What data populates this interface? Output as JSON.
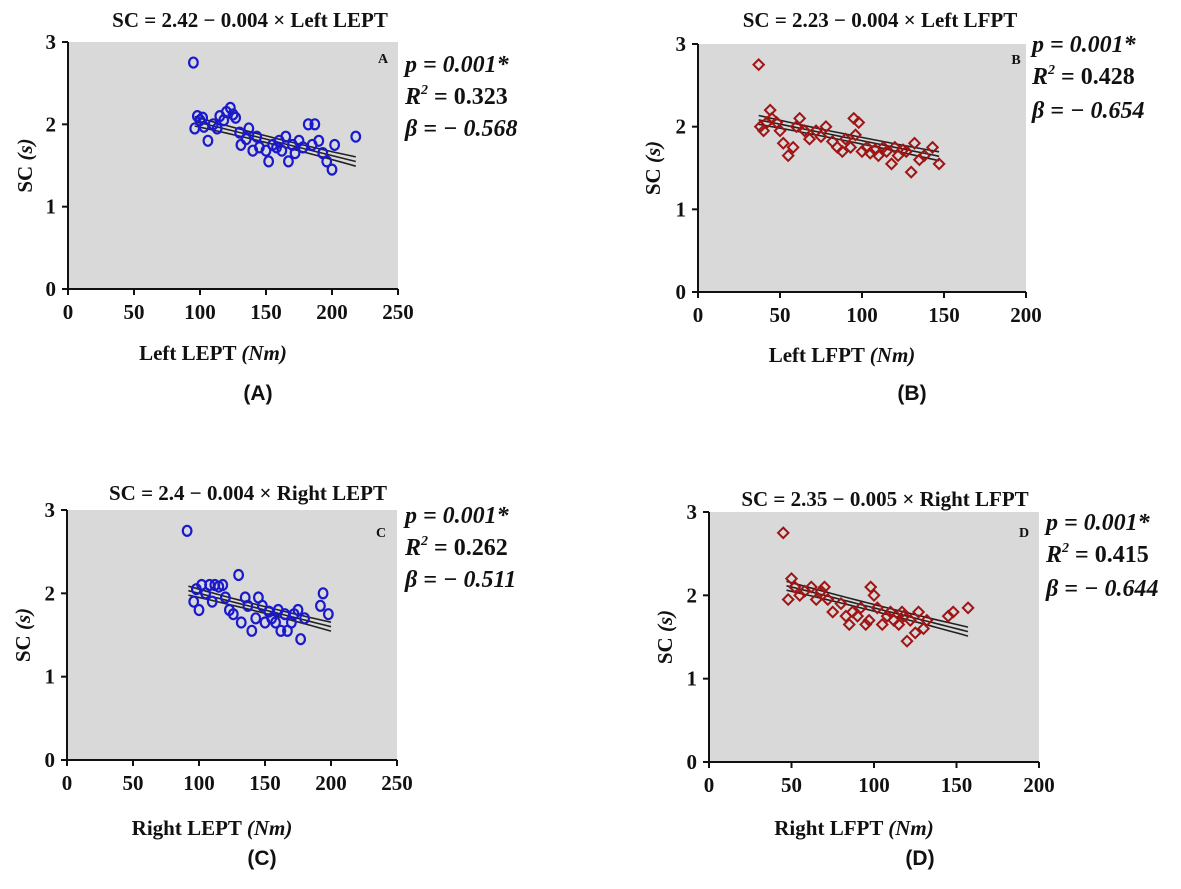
{
  "chart_data": [
    {
      "type": "scatter",
      "title": "SC = 2.42 − 0.004 × Left LEPT",
      "panel_letter": "A",
      "caption": "(A)",
      "xlabel_main": "Left LEPT ",
      "xlabel_unit": "(Nm)",
      "ylabel_main": "SC ",
      "ylabel_unit": "(s)",
      "xlim": [
        0,
        250
      ],
      "ylim": [
        0,
        3
      ],
      "xticks": [
        "0",
        "50",
        "100",
        "150",
        "200",
        "250"
      ],
      "yticks": [
        "0",
        "1",
        "2",
        "3"
      ],
      "marker": "circle",
      "color": "#1a1acc",
      "background": "#d9d9d9",
      "stats": {
        "p": "p = 0.001*",
        "r2_label": "R",
        "r2_value": "2",
        "r2_rest": " = 0.323",
        "beta": "β = − 0.568"
      },
      "fit": {
        "intercept": 2.42,
        "slope": -0.004,
        "x_range": [
          96,
          218
        ]
      },
      "points": [
        [
          95,
          2.75
        ],
        [
          96,
          1.95
        ],
        [
          98,
          2.1
        ],
        [
          100,
          2.05
        ],
        [
          102,
          2.08
        ],
        [
          103,
          1.97
        ],
        [
          106,
          1.8
        ],
        [
          110,
          2.0
        ],
        [
          113,
          1.95
        ],
        [
          115,
          2.1
        ],
        [
          118,
          2.05
        ],
        [
          120,
          2.15
        ],
        [
          123,
          2.2
        ],
        [
          125,
          2.12
        ],
        [
          127,
          2.08
        ],
        [
          130,
          1.9
        ],
        [
          131,
          1.75
        ],
        [
          135,
          1.82
        ],
        [
          137,
          1.95
        ],
        [
          140,
          1.68
        ],
        [
          143,
          1.85
        ],
        [
          145,
          1.72
        ],
        [
          150,
          1.68
        ],
        [
          152,
          1.55
        ],
        [
          155,
          1.75
        ],
        [
          158,
          1.72
        ],
        [
          160,
          1.8
        ],
        [
          162,
          1.68
        ],
        [
          165,
          1.85
        ],
        [
          167,
          1.55
        ],
        [
          170,
          1.75
        ],
        [
          172,
          1.65
        ],
        [
          175,
          1.8
        ],
        [
          178,
          1.72
        ],
        [
          182,
          2.0
        ],
        [
          185,
          1.75
        ],
        [
          187,
          2.0
        ],
        [
          190,
          1.8
        ],
        [
          193,
          1.65
        ],
        [
          196,
          1.55
        ],
        [
          200,
          1.45
        ],
        [
          202,
          1.75
        ],
        [
          218,
          1.85
        ]
      ]
    },
    {
      "type": "scatter",
      "title": "SC = 2.23 − 0.004 × Left LFPT",
      "panel_letter": "B",
      "caption": "(B)",
      "xlabel_main": "Left LFPT ",
      "xlabel_unit": "(Nm)",
      "ylabel_main": "SC ",
      "ylabel_unit": "(s)",
      "xlim": [
        0,
        200
      ],
      "ylim": [
        0,
        3
      ],
      "xticks": [
        "0",
        "50",
        "100",
        "150",
        "200"
      ],
      "yticks": [
        "0",
        "1",
        "2",
        "3"
      ],
      "marker": "diamond",
      "color": "#a01414",
      "background": "#d9d9d9",
      "stats": {
        "p": "p = 0.001*",
        "r2_label": "R",
        "r2_value": "2",
        "r2_rest": " = 0.428",
        "beta": "β = − 0.654"
      },
      "fit": {
        "intercept": 2.23,
        "slope": -0.004,
        "x_range": [
          37,
          147
        ]
      },
      "points": [
        [
          37,
          2.75
        ],
        [
          38,
          2.0
        ],
        [
          40,
          1.95
        ],
        [
          42,
          2.05
        ],
        [
          44,
          2.2
        ],
        [
          45,
          2.1
        ],
        [
          48,
          2.05
        ],
        [
          50,
          1.95
        ],
        [
          52,
          1.8
        ],
        [
          55,
          1.65
        ],
        [
          58,
          1.75
        ],
        [
          60,
          2.0
        ],
        [
          62,
          2.1
        ],
        [
          65,
          1.95
        ],
        [
          68,
          1.85
        ],
        [
          72,
          1.95
        ],
        [
          75,
          1.88
        ],
        [
          78,
          2.0
        ],
        [
          82,
          1.82
        ],
        [
          85,
          1.75
        ],
        [
          88,
          1.7
        ],
        [
          90,
          1.85
        ],
        [
          93,
          1.75
        ],
        [
          95,
          2.1
        ],
        [
          96,
          1.9
        ],
        [
          98,
          2.05
        ],
        [
          100,
          1.7
        ],
        [
          103,
          1.75
        ],
        [
          105,
          1.68
        ],
        [
          108,
          1.72
        ],
        [
          110,
          1.65
        ],
        [
          113,
          1.75
        ],
        [
          115,
          1.7
        ],
        [
          118,
          1.55
        ],
        [
          120,
          1.75
        ],
        [
          122,
          1.65
        ],
        [
          125,
          1.72
        ],
        [
          127,
          1.7
        ],
        [
          130,
          1.45
        ],
        [
          132,
          1.8
        ],
        [
          135,
          1.6
        ],
        [
          138,
          1.65
        ],
        [
          143,
          1.75
        ],
        [
          147,
          1.55
        ]
      ]
    },
    {
      "type": "scatter",
      "title": "SC = 2.4 − 0.004 × Right LEPT",
      "panel_letter": "C",
      "caption": "(C)",
      "xlabel_main": "Right LEPT ",
      "xlabel_unit": "(Nm)",
      "ylabel_main": "SC ",
      "ylabel_unit": "(s)",
      "xlim": [
        0,
        250
      ],
      "ylim": [
        0,
        3
      ],
      "xticks": [
        "0",
        "50",
        "100",
        "150",
        "200",
        "250"
      ],
      "yticks": [
        "0",
        "1",
        "2",
        "3"
      ],
      "marker": "circle",
      "color": "#1a1acc",
      "background": "#d9d9d9",
      "stats": {
        "p": "p = 0.001*",
        "r2_label": "R",
        "r2_value": "2",
        "r2_rest": " = 0.262",
        "beta": "β = − 0.511"
      },
      "fit": {
        "intercept": 2.4,
        "slope": -0.004,
        "x_range": [
          92,
          200
        ]
      },
      "points": [
        [
          91,
          2.75
        ],
        [
          96,
          1.9
        ],
        [
          98,
          2.05
        ],
        [
          100,
          1.8
        ],
        [
          102,
          2.1
        ],
        [
          105,
          2.0
        ],
        [
          108,
          2.1
        ],
        [
          110,
          1.9
        ],
        [
          112,
          2.1
        ],
        [
          115,
          2.08
        ],
        [
          118,
          2.1
        ],
        [
          120,
          1.95
        ],
        [
          123,
          1.8
        ],
        [
          126,
          1.75
        ],
        [
          130,
          2.22
        ],
        [
          132,
          1.65
        ],
        [
          135,
          1.95
        ],
        [
          137,
          1.85
        ],
        [
          140,
          1.55
        ],
        [
          143,
          1.7
        ],
        [
          145,
          1.95
        ],
        [
          148,
          1.85
        ],
        [
          150,
          1.65
        ],
        [
          153,
          1.78
        ],
        [
          155,
          1.7
        ],
        [
          158,
          1.65
        ],
        [
          160,
          1.8
        ],
        [
          162,
          1.55
        ],
        [
          165,
          1.75
        ],
        [
          167,
          1.55
        ],
        [
          170,
          1.65
        ],
        [
          172,
          1.75
        ],
        [
          175,
          1.8
        ],
        [
          177,
          1.45
        ],
        [
          180,
          1.7
        ],
        [
          192,
          1.85
        ],
        [
          194,
          2.0
        ],
        [
          198,
          1.75
        ]
      ]
    },
    {
      "type": "scatter",
      "title": "SC = 2.35 − 0.005 × Right LFPT",
      "panel_letter": "D",
      "caption": "(D)",
      "xlabel_main": "Right LFPT ",
      "xlabel_unit": "(Nm)",
      "ylabel_main": "SC ",
      "ylabel_unit": "(s)",
      "xlim": [
        0,
        200
      ],
      "ylim": [
        0,
        3
      ],
      "xticks": [
        "0",
        "50",
        "100",
        "150",
        "200"
      ],
      "yticks": [
        "0",
        "1",
        "2",
        "3"
      ],
      "marker": "diamond",
      "color": "#a01414",
      "background": "#d9d9d9",
      "stats": {
        "p": "p = 0.001*",
        "r2_label": "R",
        "r2_value": "2",
        "r2_rest": " = 0.415",
        "beta": "β = − 0.644"
      },
      "fit": {
        "intercept": 2.35,
        "slope": -0.005,
        "x_range": [
          47,
          157
        ]
      },
      "points": [
        [
          45,
          2.75
        ],
        [
          48,
          1.95
        ],
        [
          50,
          2.2
        ],
        [
          52,
          2.1
        ],
        [
          55,
          2.0
        ],
        [
          58,
          2.05
        ],
        [
          62,
          2.1
        ],
        [
          65,
          1.95
        ],
        [
          68,
          2.05
        ],
        [
          70,
          2.1
        ],
        [
          72,
          1.95
        ],
        [
          75,
          1.8
        ],
        [
          80,
          1.9
        ],
        [
          83,
          1.75
        ],
        [
          85,
          1.65
        ],
        [
          87,
          1.8
        ],
        [
          90,
          1.75
        ],
        [
          92,
          1.85
        ],
        [
          95,
          1.65
        ],
        [
          97,
          1.7
        ],
        [
          98,
          2.1
        ],
        [
          100,
          2.0
        ],
        [
          102,
          1.85
        ],
        [
          105,
          1.65
        ],
        [
          108,
          1.75
        ],
        [
          110,
          1.8
        ],
        [
          112,
          1.7
        ],
        [
          115,
          1.65
        ],
        [
          117,
          1.8
        ],
        [
          118,
          1.75
        ],
        [
          120,
          1.45
        ],
        [
          122,
          1.7
        ],
        [
          125,
          1.55
        ],
        [
          127,
          1.8
        ],
        [
          130,
          1.6
        ],
        [
          132,
          1.7
        ],
        [
          145,
          1.75
        ],
        [
          148,
          1.8
        ],
        [
          157,
          1.85
        ]
      ]
    }
  ]
}
